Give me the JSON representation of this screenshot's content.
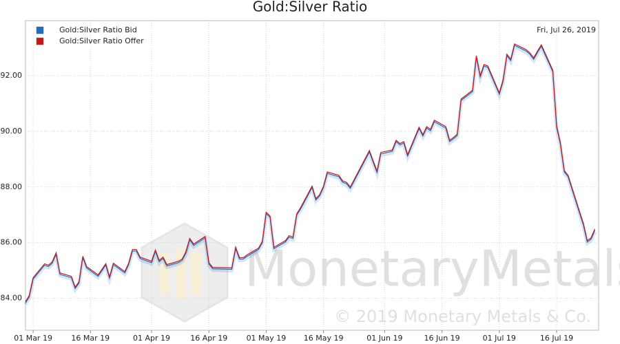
{
  "chart_data": {
    "type": "line",
    "title": "Gold:Silver Ratio",
    "annotation": "Fri, Jul 26, 2019",
    "watermark": "MonetaryMetals",
    "copyright": "© 2019 Monetary Metals & Co.",
    "legend": "upper left",
    "grid": true,
    "x": [
      "2019-02-27",
      "2019-02-28",
      "2019-03-01",
      "2019-03-04",
      "2019-03-05",
      "2019-03-06",
      "2019-03-07",
      "2019-03-08",
      "2019-03-11",
      "2019-03-12",
      "2019-03-13",
      "2019-03-14",
      "2019-03-15",
      "2019-03-18",
      "2019-03-20",
      "2019-03-21",
      "2019-03-22",
      "2019-03-25",
      "2019-03-26",
      "2019-03-27",
      "2019-03-28",
      "2019-03-29",
      "2019-04-01",
      "2019-04-02",
      "2019-04-03",
      "2019-04-04",
      "2019-04-05",
      "2019-04-08",
      "2019-04-09",
      "2019-04-10",
      "2019-04-11",
      "2019-04-12",
      "2019-04-15",
      "2019-04-16",
      "2019-04-17",
      "2019-04-22",
      "2019-04-23",
      "2019-04-24",
      "2019-04-25",
      "2019-04-26",
      "2019-04-29",
      "2019-04-30",
      "2019-05-01",
      "2019-05-02",
      "2019-05-03",
      "2019-05-06",
      "2019-05-07",
      "2019-05-08",
      "2019-05-09",
      "2019-05-10",
      "2019-05-13",
      "2019-05-14",
      "2019-05-15",
      "2019-05-16",
      "2019-05-17",
      "2019-05-20",
      "2019-05-21",
      "2019-05-22",
      "2019-05-23",
      "2019-05-28",
      "2019-05-29",
      "2019-05-30",
      "2019-05-31",
      "2019-06-03",
      "2019-06-04",
      "2019-06-05",
      "2019-06-06",
      "2019-06-07",
      "2019-06-10",
      "2019-06-11",
      "2019-06-12",
      "2019-06-13",
      "2019-06-14",
      "2019-06-17",
      "2019-06-18",
      "2019-06-19",
      "2019-06-20",
      "2019-06-21",
      "2019-06-24",
      "2019-06-25",
      "2019-06-26",
      "2019-06-27",
      "2019-06-28",
      "2019-07-01",
      "2019-07-02",
      "2019-07-03",
      "2019-07-04",
      "2019-07-05",
      "2019-07-08",
      "2019-07-09",
      "2019-07-10",
      "2019-07-11",
      "2019-07-12",
      "2019-07-15",
      "2019-07-16",
      "2019-07-17",
      "2019-07-18",
      "2019-07-19",
      "2019-07-22",
      "2019-07-23",
      "2019-07-24",
      "2019-07-25",
      "2019-07-26"
    ],
    "series": [
      {
        "name": "Gold:Silver Ratio Bid",
        "color": "#1a6fc4",
        "values": [
          83.83,
          84.05,
          84.69,
          85.19,
          85.14,
          85.26,
          85.58,
          84.86,
          84.74,
          84.35,
          84.54,
          85.46,
          85.09,
          84.79,
          85.19,
          84.72,
          85.21,
          84.91,
          85.21,
          85.7,
          85.7,
          85.43,
          85.28,
          85.68,
          85.31,
          85.43,
          85.16,
          85.28,
          85.36,
          85.63,
          86.1,
          85.9,
          86.17,
          85.23,
          85.06,
          85.04,
          85.78,
          85.41,
          85.41,
          85.51,
          85.75,
          86.0,
          87.04,
          86.91,
          85.78,
          86.02,
          86.2,
          86.15,
          86.99,
          87.21,
          87.98,
          87.53,
          87.68,
          87.98,
          88.49,
          88.37,
          88.17,
          88.12,
          87.95,
          89.26,
          88.89,
          88.52,
          89.19,
          89.28,
          89.63,
          89.51,
          89.58,
          89.11,
          90.1,
          89.83,
          90.12,
          90.02,
          90.35,
          90.12,
          89.63,
          89.73,
          89.85,
          91.11,
          91.43,
          92.67,
          91.95,
          92.35,
          92.3,
          91.33,
          91.8,
          92.72,
          92.54,
          93.09,
          92.89,
          92.77,
          92.59,
          92.84,
          93.06,
          92.15,
          90.15,
          89.53,
          88.54,
          88.37,
          87.06,
          86.64,
          86.02,
          86.12,
          86.44
        ]
      },
      {
        "name": "Gold:Silver Ratio Offer",
        "color": "#cc1515",
        "values": [
          83.88,
          84.1,
          84.74,
          85.24,
          85.19,
          85.31,
          85.63,
          84.91,
          84.79,
          84.4,
          84.59,
          85.51,
          85.14,
          84.84,
          85.24,
          84.77,
          85.26,
          84.96,
          85.26,
          85.75,
          85.75,
          85.48,
          85.33,
          85.73,
          85.36,
          85.48,
          85.21,
          85.33,
          85.41,
          85.68,
          86.15,
          85.95,
          86.22,
          85.28,
          85.11,
          85.09,
          85.83,
          85.46,
          85.46,
          85.56,
          85.8,
          86.05,
          87.09,
          86.96,
          85.83,
          86.07,
          86.25,
          86.2,
          87.04,
          87.26,
          88.03,
          87.58,
          87.73,
          88.03,
          88.54,
          88.42,
          88.22,
          88.17,
          88.0,
          89.31,
          88.94,
          88.57,
          89.24,
          89.33,
          89.68,
          89.56,
          89.63,
          89.16,
          90.15,
          89.88,
          90.17,
          90.07,
          90.4,
          90.17,
          89.68,
          89.78,
          89.9,
          91.16,
          91.48,
          92.72,
          92.0,
          92.4,
          92.35,
          91.38,
          91.85,
          92.77,
          92.59,
          93.14,
          92.94,
          92.82,
          92.64,
          92.89,
          93.11,
          92.2,
          90.2,
          89.58,
          88.59,
          88.42,
          87.11,
          86.69,
          86.07,
          86.17,
          86.49
        ]
      }
    ],
    "xlim": [
      "2019-02-27",
      "2019-07-27"
    ],
    "xticks": [
      {
        "value": "2019-03-01",
        "label": "01 Mar 19"
      },
      {
        "value": "2019-03-16",
        "label": "16 Mar 19"
      },
      {
        "value": "2019-04-01",
        "label": "01 Apr 19"
      },
      {
        "value": "2019-04-16",
        "label": "16 Apr 19"
      },
      {
        "value": "2019-05-01",
        "label": "01 May 19"
      },
      {
        "value": "2019-05-16",
        "label": "16 May 19"
      },
      {
        "value": "2019-06-01",
        "label": "01 Jun 19"
      },
      {
        "value": "2019-06-16",
        "label": "16 Jun 19"
      },
      {
        "value": "2019-07-01",
        "label": "01 Jul 19"
      },
      {
        "value": "2019-07-16",
        "label": "16 Jul 19"
      }
    ],
    "ylim": [
      82.85,
      93.98
    ],
    "yticks": [
      {
        "value": 84,
        "label": "84.00"
      },
      {
        "value": 86,
        "label": "86.00"
      },
      {
        "value": 88,
        "label": "88.00"
      },
      {
        "value": 90,
        "label": "90.00"
      },
      {
        "value": 92,
        "label": "92.00"
      }
    ]
  }
}
